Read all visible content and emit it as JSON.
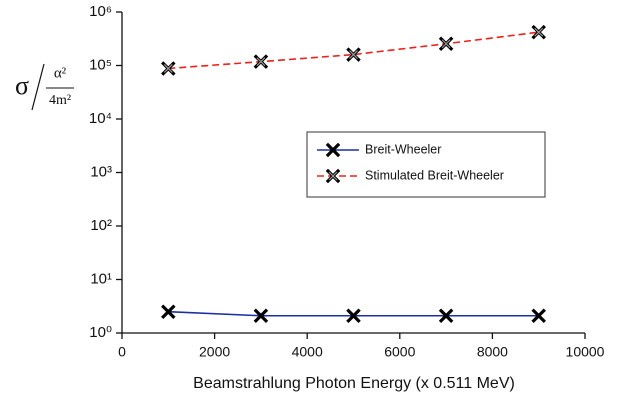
{
  "chart_data": {
    "type": "line",
    "xlabel": "Beamstrahlung Photon Energy (x 0.511 MeV)",
    "ylabel": {
      "symbol": "σ",
      "numerator": "α²",
      "denominator": "4m²"
    },
    "x": [
      1000,
      3000,
      5000,
      7000,
      9000
    ],
    "series": [
      {
        "name": "Breit-Wheeler",
        "color": "#1c2fa0",
        "marker_fill": "#000000",
        "dash": false,
        "values": [
          2.5,
          2.1,
          2.1,
          2.1,
          2.1
        ]
      },
      {
        "name": "Stimulated Breit-Wheeler",
        "color": "#e8231f",
        "marker_fill": "#9a9a9a",
        "dash": true,
        "values": [
          88000,
          118000,
          160000,
          255000,
          420000
        ]
      }
    ],
    "xlim": [
      0,
      10000
    ],
    "xticks": [
      0,
      2000,
      4000,
      6000,
      8000,
      10000
    ],
    "ylim": [
      1,
      1000000
    ],
    "yscale": "log",
    "yticks": [
      {
        "value": 1,
        "label": "10⁰"
      },
      {
        "value": 10,
        "label": "10¹"
      },
      {
        "value": 100,
        "label": "10²"
      },
      {
        "value": 1000,
        "label": "10³"
      },
      {
        "value": 10000,
        "label": "10⁴"
      },
      {
        "value": 100000,
        "label": "10⁵"
      },
      {
        "value": 1000000,
        "label": "10⁶"
      }
    ],
    "legend": "center-right",
    "grid": false
  }
}
